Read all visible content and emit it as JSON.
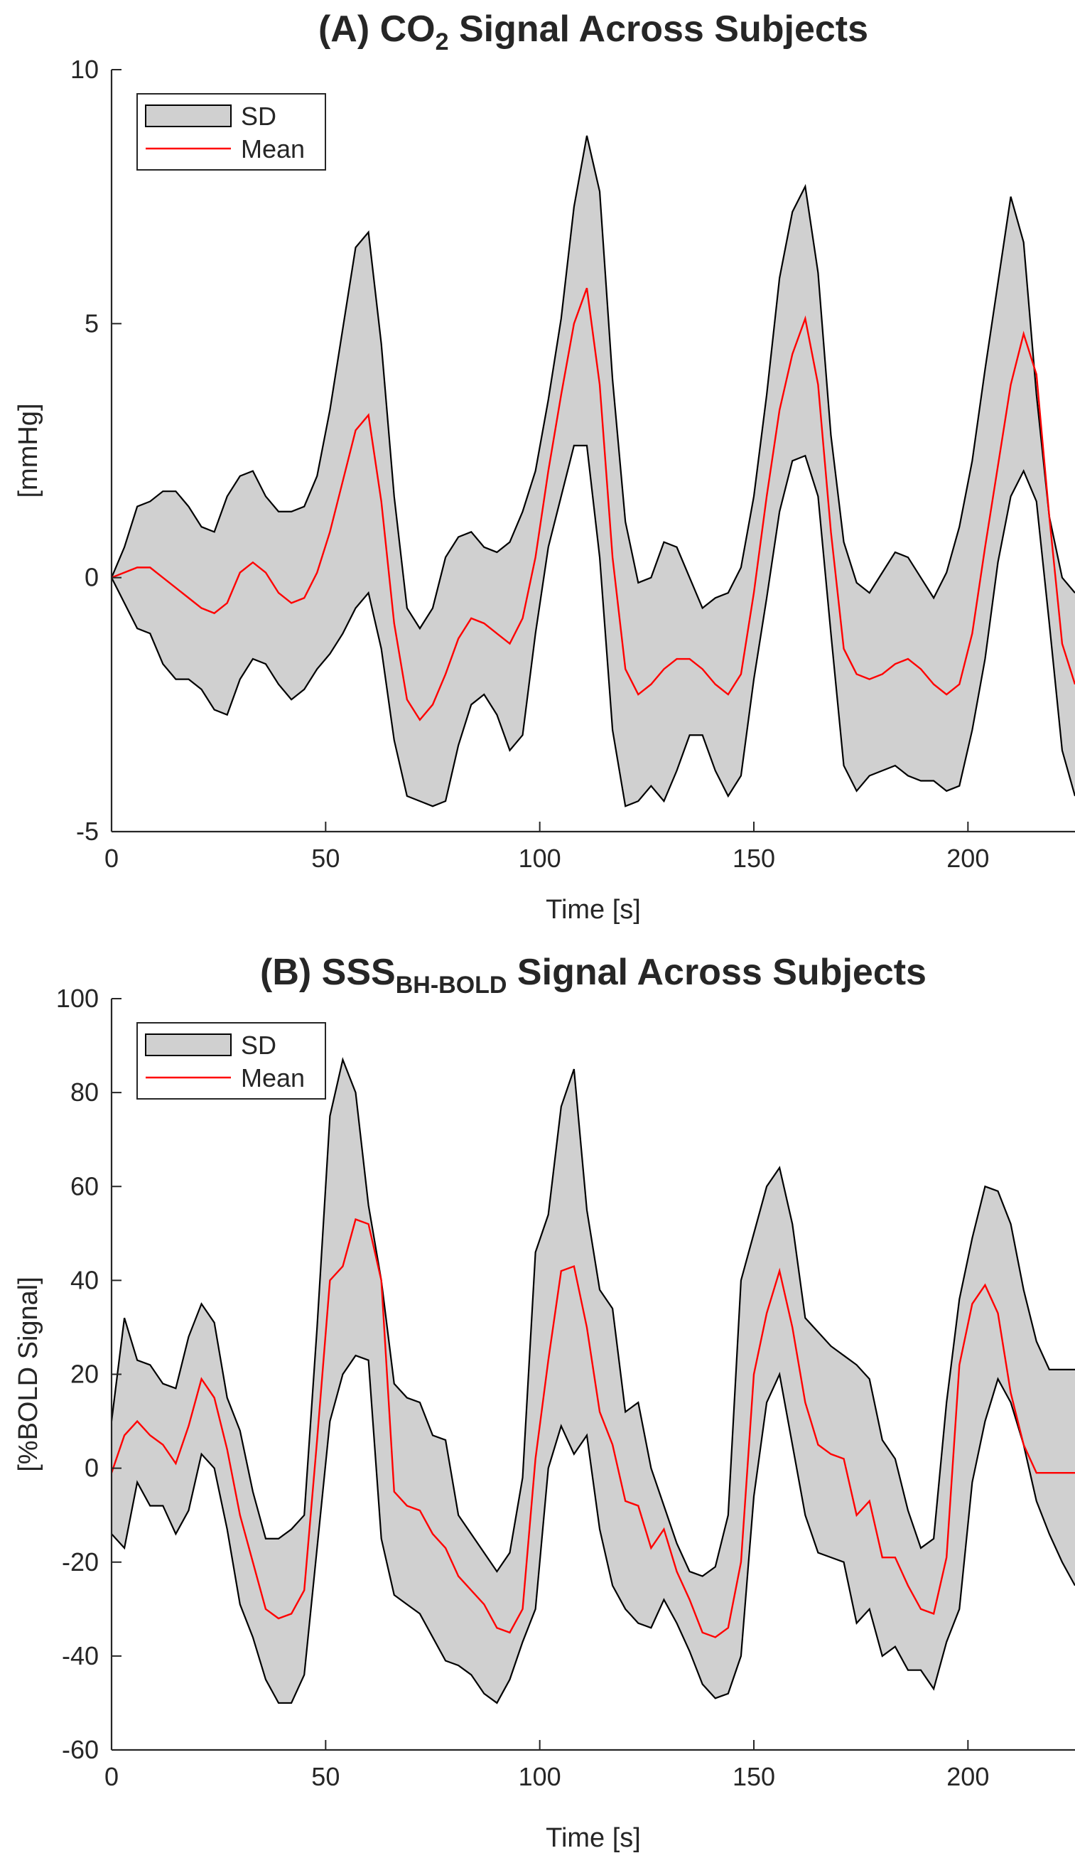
{
  "chart_data": [
    {
      "type": "area",
      "title": "(A) CO",
      "title_subscript": "2",
      "title_rest": " Signal Across Subjects",
      "xlabel": "Time [s]",
      "ylabel": "[mmHg]",
      "xlim": [
        0,
        225
      ],
      "ylim": [
        -5,
        10
      ],
      "xticks": [
        0,
        50,
        100,
        150,
        200
      ],
      "yticks": [
        -5,
        0,
        5,
        10
      ],
      "grid": false,
      "legend_position": "top-left",
      "legend": {
        "band_label": "SD",
        "mean_label": "Mean"
      },
      "colors": {
        "band_fill": "#d0d0d0",
        "band_edge": "#000000",
        "mean_line": "#ff0000"
      },
      "x": [
        0,
        3,
        6,
        9,
        12,
        15,
        18,
        21,
        24,
        27,
        30,
        33,
        36,
        39,
        42,
        45,
        48,
        51,
        54,
        57,
        60,
        63,
        66,
        69,
        72,
        75,
        78,
        81,
        84,
        87,
        90,
        93,
        96,
        99,
        102,
        105,
        108,
        111,
        114,
        117,
        120,
        123,
        126,
        129,
        132,
        135,
        138,
        141,
        144,
        147,
        150,
        153,
        156,
        159,
        162,
        165,
        168,
        171,
        174,
        177,
        180,
        183,
        186,
        189,
        192,
        195,
        198,
        201,
        204,
        207,
        210,
        213,
        216,
        219,
        222,
        225
      ],
      "series": [
        {
          "name": "Mean",
          "values": [
            0,
            0.1,
            0.2,
            0.2,
            0,
            -0.2,
            -0.4,
            -0.6,
            -0.7,
            -0.5,
            0.1,
            0.3,
            0.1,
            -0.3,
            -0.5,
            -0.4,
            0.1,
            0.9,
            1.9,
            2.9,
            3.2,
            1.5,
            -0.9,
            -2.4,
            -2.8,
            -2.5,
            -1.9,
            -1.2,
            -0.8,
            -0.9,
            -1.1,
            -1.3,
            -0.8,
            0.4,
            2.1,
            3.6,
            5.0,
            5.7,
            3.8,
            0.4,
            -1.8,
            -2.3,
            -2.1,
            -1.8,
            -1.6,
            -1.6,
            -1.8,
            -2.1,
            -2.3,
            -1.9,
            -0.3,
            1.6,
            3.3,
            4.4,
            5.1,
            3.8,
            0.9,
            -1.4,
            -1.9,
            -2.0,
            -1.9,
            -1.7,
            -1.6,
            -1.8,
            -2.1,
            -2.3,
            -2.1,
            -1.1,
            0.6,
            2.2,
            3.8,
            4.8,
            4.0,
            1.2,
            -1.3,
            -2.1
          ]
        },
        {
          "name": "SD upper",
          "values": [
            0,
            0.6,
            1.4,
            1.5,
            1.7,
            1.7,
            1.4,
            1.0,
            0.9,
            1.6,
            2.0,
            2.1,
            1.6,
            1.3,
            1.3,
            1.4,
            2.0,
            3.3,
            4.9,
            6.5,
            6.8,
            4.6,
            1.6,
            -0.6,
            -1.0,
            -0.6,
            0.4,
            0.8,
            0.9,
            0.6,
            0.5,
            0.7,
            1.3,
            2.1,
            3.5,
            5.1,
            7.3,
            8.7,
            7.6,
            3.9,
            1.1,
            -0.1,
            0.0,
            0.7,
            0.6,
            0.0,
            -0.6,
            -0.4,
            -0.3,
            0.2,
            1.6,
            3.6,
            5.9,
            7.2,
            7.7,
            6.0,
            2.8,
            0.7,
            -0.1,
            -0.3,
            0.1,
            0.5,
            0.4,
            0.0,
            -0.4,
            0.1,
            1.0,
            2.3,
            4.1,
            5.8,
            7.5,
            6.6,
            3.6,
            1.2,
            0.0,
            -0.3
          ]
        },
        {
          "name": "SD lower",
          "values": [
            0,
            -0.5,
            -1.0,
            -1.1,
            -1.7,
            -2.0,
            -2.0,
            -2.2,
            -2.6,
            -2.7,
            -2.0,
            -1.6,
            -1.7,
            -2.1,
            -2.4,
            -2.2,
            -1.8,
            -1.5,
            -1.1,
            -0.6,
            -0.3,
            -1.4,
            -3.2,
            -4.3,
            -4.4,
            -4.5,
            -4.4,
            -3.3,
            -2.5,
            -2.3,
            -2.7,
            -3.4,
            -3.1,
            -1.1,
            0.6,
            1.6,
            2.6,
            2.6,
            0.4,
            -3.0,
            -4.5,
            -4.4,
            -4.1,
            -4.4,
            -3.8,
            -3.1,
            -3.1,
            -3.8,
            -4.3,
            -3.9,
            -2.0,
            -0.4,
            1.3,
            2.3,
            2.4,
            1.6,
            -1.1,
            -3.7,
            -4.2,
            -3.9,
            -3.8,
            -3.7,
            -3.9,
            -4.0,
            -4.0,
            -4.2,
            -4.1,
            -3.0,
            -1.6,
            0.3,
            1.6,
            2.1,
            1.5,
            -0.9,
            -3.4,
            -4.3
          ]
        }
      ]
    },
    {
      "type": "area",
      "title": "(B) SSS",
      "title_subscript": "BH-BOLD",
      "title_rest": " Signal Across Subjects",
      "xlabel": "Time [s]",
      "ylabel": "[%BOLD Signal]",
      "xlim": [
        0,
        225
      ],
      "ylim": [
        -60,
        100
      ],
      "xticks": [
        0,
        50,
        100,
        150,
        200
      ],
      "yticks": [
        -60,
        -40,
        -20,
        0,
        20,
        40,
        60,
        80,
        100
      ],
      "grid": false,
      "legend_position": "top-left",
      "legend": {
        "band_label": "SD",
        "mean_label": "Mean"
      },
      "colors": {
        "band_fill": "#d0d0d0",
        "band_edge": "#000000",
        "mean_line": "#ff0000"
      },
      "x": [
        0,
        3,
        6,
        9,
        12,
        15,
        18,
        21,
        24,
        27,
        30,
        33,
        36,
        39,
        42,
        45,
        48,
        51,
        54,
        57,
        60,
        63,
        66,
        69,
        72,
        75,
        78,
        81,
        84,
        87,
        90,
        93,
        96,
        99,
        102,
        105,
        108,
        111,
        114,
        117,
        120,
        123,
        126,
        129,
        132,
        135,
        138,
        141,
        144,
        147,
        150,
        153,
        156,
        159,
        162,
        165,
        168,
        171,
        174,
        177,
        180,
        183,
        186,
        189,
        192,
        195,
        198,
        201,
        204,
        207,
        210,
        213,
        216,
        219,
        222,
        225
      ],
      "series": [
        {
          "name": "Mean",
          "values": [
            -1,
            7,
            10,
            7,
            5,
            1,
            9,
            19,
            15,
            4,
            -10,
            -20,
            -30,
            -32,
            -31,
            -26,
            6,
            40,
            43,
            53,
            52,
            40,
            -5,
            -8,
            -9,
            -14,
            -17,
            -23,
            -26,
            -29,
            -34,
            -35,
            -30,
            2,
            23,
            42,
            43,
            30,
            12,
            5,
            -7,
            -8,
            -17,
            -13,
            -22,
            -28,
            -35,
            -36,
            -34,
            -20,
            20,
            33,
            42,
            30,
            14,
            5,
            3,
            2,
            -10,
            -7,
            -19,
            -19,
            -25,
            -30,
            -31,
            -19,
            22,
            35,
            39,
            33,
            16,
            5,
            -1,
            -1,
            -1,
            -1
          ]
        },
        {
          "name": "SD upper",
          "values": [
            10,
            32,
            23,
            22,
            18,
            17,
            28,
            35,
            31,
            15,
            8,
            -5,
            -15,
            -15,
            -13,
            -10,
            30,
            75,
            87,
            80,
            56,
            40,
            18,
            15,
            14,
            7,
            6,
            -10,
            -14,
            -18,
            -22,
            -18,
            -2,
            46,
            54,
            77,
            85,
            55,
            38,
            34,
            12,
            14,
            0,
            -8,
            -16,
            -22,
            -23,
            -21,
            -10,
            40,
            50,
            60,
            64,
            52,
            32,
            29,
            26,
            24,
            22,
            19,
            6,
            2,
            -9,
            -17,
            -15,
            14,
            36,
            49,
            60,
            59,
            52,
            38,
            27,
            21,
            21,
            21
          ]
        },
        {
          "name": "SD lower",
          "values": [
            -14,
            -17,
            -3,
            -8,
            -8,
            -14,
            -9,
            3,
            0,
            -13,
            -29,
            -36,
            -45,
            -50,
            -50,
            -44,
            -17,
            10,
            20,
            24,
            23,
            -15,
            -27,
            -29,
            -31,
            -36,
            -41,
            -42,
            -44,
            -48,
            -50,
            -45,
            -37,
            -30,
            0,
            9,
            3,
            7,
            -13,
            -25,
            -30,
            -33,
            -34,
            -28,
            -33,
            -39,
            -46,
            -49,
            -48,
            -40,
            -6,
            14,
            20,
            5,
            -10,
            -18,
            -19,
            -20,
            -33,
            -30,
            -40,
            -38,
            -43,
            -43,
            -47,
            -37,
            -30,
            -3,
            10,
            19,
            14,
            5,
            -7,
            -14,
            -20,
            -25
          ]
        }
      ]
    }
  ]
}
